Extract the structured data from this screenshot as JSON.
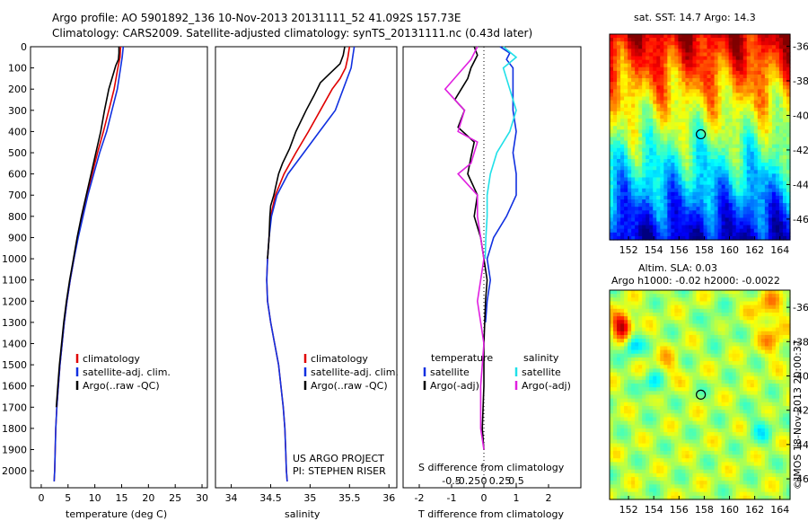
{
  "header": {
    "line1": "Argo profile: AO 5901892_136 10-Nov-2013 20131111_52 41.092S 157.73E",
    "line2": "Climatology: CARS2009. Satellite-adjusted climatology: synTS_20131111.nc (0.43d later)"
  },
  "colors": {
    "red": "#e00000",
    "blue": "#1030e0",
    "black": "#000000",
    "cyan": "#20e0e8",
    "magenta": "#e020e0"
  },
  "chart_data": [
    {
      "type": "line",
      "id": "temperature-profile",
      "xlabel": "temperature (deg C)",
      "ylabel": "",
      "xlim": [
        -2,
        31
      ],
      "ylim": [
        2080,
        0
      ],
      "xticks": [
        0,
        5,
        10,
        15,
        20,
        25,
        30
      ],
      "xticklabels": [
        "0",
        "5",
        "10",
        "15",
        "20",
        "25",
        "30"
      ],
      "yticks": [
        0,
        100,
        200,
        300,
        400,
        500,
        600,
        700,
        800,
        900,
        1000,
        1100,
        1200,
        1300,
        1400,
        1500,
        1600,
        1700,
        1800,
        1900,
        2000
      ],
      "yticklabels": [
        "0",
        "100",
        "200",
        "300",
        "400",
        "500",
        "600",
        "700",
        "800",
        "900",
        "1000",
        "1100",
        "1200",
        "1300",
        "1400",
        "1500",
        "1600",
        "1700",
        "1800",
        "1900",
        "2000"
      ],
      "legend": [
        "climatology",
        "satellite-adj. clim.",
        "Argo(..raw -QC)"
      ],
      "series": [
        {
          "name": "climatology",
          "color": "red",
          "points": [
            [
              14.8,
              0
            ],
            [
              14.7,
              50
            ],
            [
              14.3,
              100
            ],
            [
              13.6,
              200
            ],
            [
              12.6,
              300
            ],
            [
              11.6,
              400
            ],
            [
              10.5,
              500
            ],
            [
              9.5,
              600
            ],
            [
              8.5,
              700
            ],
            [
              7.6,
              800
            ],
            [
              6.8,
              900
            ],
            [
              6.1,
              1000
            ],
            [
              5.4,
              1100
            ],
            [
              4.8,
              1200
            ],
            [
              4.3,
              1300
            ],
            [
              3.9,
              1400
            ],
            [
              3.5,
              1500
            ],
            [
              3.2,
              1600
            ],
            [
              2.9,
              1700
            ],
            [
              2.7,
              1800
            ],
            [
              2.6,
              1900
            ],
            [
              2.5,
              2000
            ],
            [
              2.4,
              2050
            ]
          ]
        },
        {
          "name": "satellite-adj. clim.",
          "color": "blue",
          "points": [
            [
              15.3,
              0
            ],
            [
              15.1,
              50
            ],
            [
              14.8,
              100
            ],
            [
              14.2,
              200
            ],
            [
              13.2,
              300
            ],
            [
              12.2,
              400
            ],
            [
              10.9,
              500
            ],
            [
              9.8,
              600
            ],
            [
              8.7,
              700
            ],
            [
              7.8,
              800
            ],
            [
              6.9,
              900
            ],
            [
              6.1,
              1000
            ],
            [
              5.4,
              1100
            ],
            [
              4.8,
              1200
            ],
            [
              4.3,
              1300
            ],
            [
              3.9,
              1400
            ],
            [
              3.5,
              1500
            ],
            [
              3.2,
              1600
            ],
            [
              2.9,
              1700
            ],
            [
              2.7,
              1800
            ],
            [
              2.6,
              1900
            ],
            [
              2.5,
              2000
            ],
            [
              2.4,
              2050
            ]
          ]
        },
        {
          "name": "Argo(..raw -QC)",
          "color": "black",
          "points": [
            [
              14.5,
              0
            ],
            [
              14.5,
              30
            ],
            [
              14.4,
              60
            ],
            [
              13.9,
              90
            ],
            [
              13.2,
              150
            ],
            [
              12.6,
              200
            ],
            [
              11.8,
              300
            ],
            [
              11.1,
              400
            ],
            [
              10.2,
              500
            ],
            [
              9.3,
              600
            ],
            [
              8.4,
              700
            ],
            [
              7.5,
              800
            ],
            [
              6.7,
              900
            ],
            [
              6.0,
              1000
            ],
            [
              5.3,
              1100
            ],
            [
              4.7,
              1200
            ],
            [
              4.2,
              1300
            ],
            [
              3.8,
              1400
            ],
            [
              3.4,
              1500
            ],
            [
              3.1,
              1600
            ],
            [
              2.8,
              1700
            ]
          ]
        }
      ]
    },
    {
      "type": "line",
      "id": "salinity-profile",
      "xlabel": "salinity",
      "xlim": [
        33.8,
        36.1
      ],
      "ylim": [
        2080,
        0
      ],
      "xticks": [
        34,
        34.5,
        35,
        35.5,
        36
      ],
      "xticklabels": [
        "34",
        "34.5",
        "35",
        "35.5",
        "36"
      ],
      "legend": [
        "climatology",
        "satellite-adj. clim.",
        "Argo(..raw -QC)"
      ],
      "series": [
        {
          "name": "climatology",
          "color": "red",
          "points": [
            [
              35.5,
              0
            ],
            [
              35.48,
              50
            ],
            [
              35.45,
              100
            ],
            [
              35.38,
              150
            ],
            [
              35.28,
              200
            ],
            [
              35.13,
              300
            ],
            [
              34.98,
              400
            ],
            [
              34.82,
              500
            ],
            [
              34.67,
              600
            ],
            [
              34.56,
              700
            ],
            [
              34.5,
              800
            ],
            [
              34.48,
              900
            ],
            [
              34.46,
              1000
            ],
            [
              34.45,
              1100
            ],
            [
              34.46,
              1200
            ],
            [
              34.5,
              1300
            ],
            [
              34.55,
              1400
            ],
            [
              34.6,
              1500
            ],
            [
              34.63,
              1600
            ],
            [
              34.66,
              1700
            ],
            [
              34.68,
              1800
            ],
            [
              34.69,
              1900
            ],
            [
              34.7,
              2000
            ],
            [
              34.71,
              2050
            ]
          ]
        },
        {
          "name": "satellite-adj. clim.",
          "color": "blue",
          "points": [
            [
              35.56,
              0
            ],
            [
              35.54,
              50
            ],
            [
              35.52,
              100
            ],
            [
              35.47,
              150
            ],
            [
              35.42,
              200
            ],
            [
              35.32,
              300
            ],
            [
              35.12,
              400
            ],
            [
              34.92,
              500
            ],
            [
              34.72,
              600
            ],
            [
              34.58,
              700
            ],
            [
              34.51,
              800
            ],
            [
              34.48,
              900
            ],
            [
              34.46,
              1000
            ],
            [
              34.45,
              1100
            ],
            [
              34.46,
              1200
            ],
            [
              34.5,
              1300
            ],
            [
              34.55,
              1400
            ],
            [
              34.6,
              1500
            ],
            [
              34.63,
              1600
            ],
            [
              34.66,
              1700
            ],
            [
              34.68,
              1800
            ],
            [
              34.69,
              1900
            ],
            [
              34.7,
              2000
            ],
            [
              34.71,
              2050
            ]
          ]
        },
        {
          "name": "Argo(..raw -QC)",
          "color": "black",
          "points": [
            [
              35.44,
              0
            ],
            [
              35.42,
              40
            ],
            [
              35.38,
              80
            ],
            [
              35.24,
              130
            ],
            [
              35.13,
              170
            ],
            [
              35.05,
              230
            ],
            [
              34.95,
              300
            ],
            [
              34.82,
              400
            ],
            [
              34.74,
              480
            ],
            [
              34.65,
              550
            ],
            [
              34.6,
              600
            ],
            [
              34.54,
              700
            ],
            [
              34.5,
              750
            ],
            [
              34.49,
              800
            ],
            [
              34.48,
              900
            ],
            [
              34.46,
              1000
            ]
          ]
        }
      ],
      "annotation": [
        "US ARGO PROJECT",
        "PI: STEPHEN RISER"
      ]
    },
    {
      "type": "line",
      "id": "difference-profile",
      "xlabel": "T difference from climatology",
      "xlabel_top": "S difference from climatology",
      "xlim_T": [
        -2.5,
        3
      ],
      "xticks_T": [
        -2,
        -1,
        0,
        1,
        2
      ],
      "xticklabels_T": [
        "-2",
        "-1",
        "0",
        "1",
        "2"
      ],
      "xticks_S": [
        -0.5,
        -0.25,
        0,
        0.25,
        0.5
      ],
      "xticklabels_S": [
        "-0.5",
        "-0.25",
        "0",
        "0.25",
        "0.5"
      ],
      "ylim": [
        2080,
        0
      ],
      "legend_temperature": {
        "title": "temperature",
        "items": [
          "satellite",
          "Argo(-adj)"
        ]
      },
      "legend_salinity": {
        "title": "salinity",
        "items": [
          "satellite",
          "Argo(-adj)"
        ]
      },
      "series": [
        {
          "name": "satellite",
          "group": "temperature",
          "color": "blue",
          "points": [
            [
              0.5,
              0
            ],
            [
              0.8,
              30
            ],
            [
              0.7,
              60
            ],
            [
              0.9,
              100
            ],
            [
              0.9,
              200
            ],
            [
              0.9,
              300
            ],
            [
              1.0,
              400
            ],
            [
              0.9,
              500
            ],
            [
              1.0,
              600
            ],
            [
              1.0,
              700
            ],
            [
              0.7,
              800
            ],
            [
              0.3,
              900
            ],
            [
              0.1,
              1000
            ],
            [
              0.2,
              1100
            ],
            [
              0.1,
              1200
            ],
            [
              0.05,
              1300
            ]
          ]
        },
        {
          "name": "Argo(-adj)",
          "group": "temperature",
          "color": "black",
          "points": [
            [
              -0.3,
              0
            ],
            [
              -0.2,
              40
            ],
            [
              -0.4,
              100
            ],
            [
              -0.5,
              150
            ],
            [
              -0.9,
              250
            ],
            [
              -0.6,
              300
            ],
            [
              -0.8,
              380
            ],
            [
              -0.3,
              450
            ],
            [
              -0.4,
              520
            ],
            [
              -0.5,
              600
            ],
            [
              -0.2,
              700
            ],
            [
              -0.3,
              800
            ],
            [
              -0.1,
              900
            ],
            [
              0.0,
              1000
            ],
            [
              0.1,
              1100
            ],
            [
              0.05,
              1200
            ],
            [
              0.0,
              1400
            ],
            [
              0.0,
              1600
            ],
            [
              -0.05,
              1800
            ],
            [
              0.0,
              1900
            ]
          ]
        },
        {
          "name": "satellite",
          "group": "salinity",
          "color": "cyan",
          "points": [
            [
              0.3,
              0
            ],
            [
              0.5,
              50
            ],
            [
              0.3,
              100
            ],
            [
              0.4,
              200
            ],
            [
              0.5,
              300
            ],
            [
              0.4,
              400
            ],
            [
              0.2,
              500
            ],
            [
              0.1,
              600
            ],
            [
              0.05,
              700
            ],
            [
              0.05,
              800
            ],
            [
              0.03,
              900
            ],
            [
              0.02,
              1000
            ]
          ]
        },
        {
          "name": "Argo(-adj)",
          "group": "salinity",
          "color": "magenta",
          "points": [
            [
              -0.1,
              0
            ],
            [
              -0.2,
              60
            ],
            [
              -0.6,
              200
            ],
            [
              -0.3,
              300
            ],
            [
              -0.4,
              400
            ],
            [
              -0.1,
              450
            ],
            [
              -0.2,
              550
            ],
            [
              -0.4,
              600
            ],
            [
              -0.1,
              700
            ],
            [
              -0.1,
              800
            ],
            [
              0.0,
              1000
            ],
            [
              -0.1,
              1200
            ],
            [
              0.0,
              1400
            ],
            [
              -0.05,
              1600
            ],
            [
              -0.05,
              1800
            ],
            [
              0.0,
              1900
            ]
          ]
        }
      ]
    },
    {
      "type": "heatmap",
      "id": "sst-map",
      "title": "sat. SST: 14.7 Argo: 14.3",
      "xlim": [
        150.5,
        164.8
      ],
      "ylim": [
        -47.2,
        -35.3
      ],
      "xticks": [
        152,
        154,
        156,
        158,
        160,
        162,
        164
      ],
      "xticklabels": [
        "152",
        "154",
        "156",
        "158",
        "160",
        "162",
        "164"
      ],
      "yticks": [
        -36,
        -38,
        -40,
        -42,
        -44,
        -46
      ],
      "yticklabels": [
        "-36",
        "-38",
        "-40",
        "-42",
        "-44",
        "-46"
      ],
      "marker": {
        "lon": 157.73,
        "lat": -41.092
      },
      "palette": "jet"
    },
    {
      "type": "heatmap",
      "id": "sla-map",
      "title": "Altim. SLA: 0.03",
      "subtitle": "Argo h1000: -0.02 h2000: -0.0022",
      "xlim": [
        150.5,
        164.8
      ],
      "ylim": [
        -47.2,
        -35.0
      ],
      "xticks": [
        152,
        154,
        156,
        158,
        160,
        162,
        164
      ],
      "xticklabels": [
        "152",
        "154",
        "156",
        "158",
        "160",
        "162",
        "164"
      ],
      "yticks": [
        -36,
        -38,
        -40,
        -42,
        -44,
        -46
      ],
      "yticklabels": [
        "-36",
        "-38",
        "-40",
        "-42",
        "-44",
        "-46"
      ],
      "marker": {
        "lon": 157.73,
        "lat": -41.092
      },
      "palette": "jet"
    }
  ],
  "side_label": "©IMOS 18-Nov-2013 20:00:37"
}
